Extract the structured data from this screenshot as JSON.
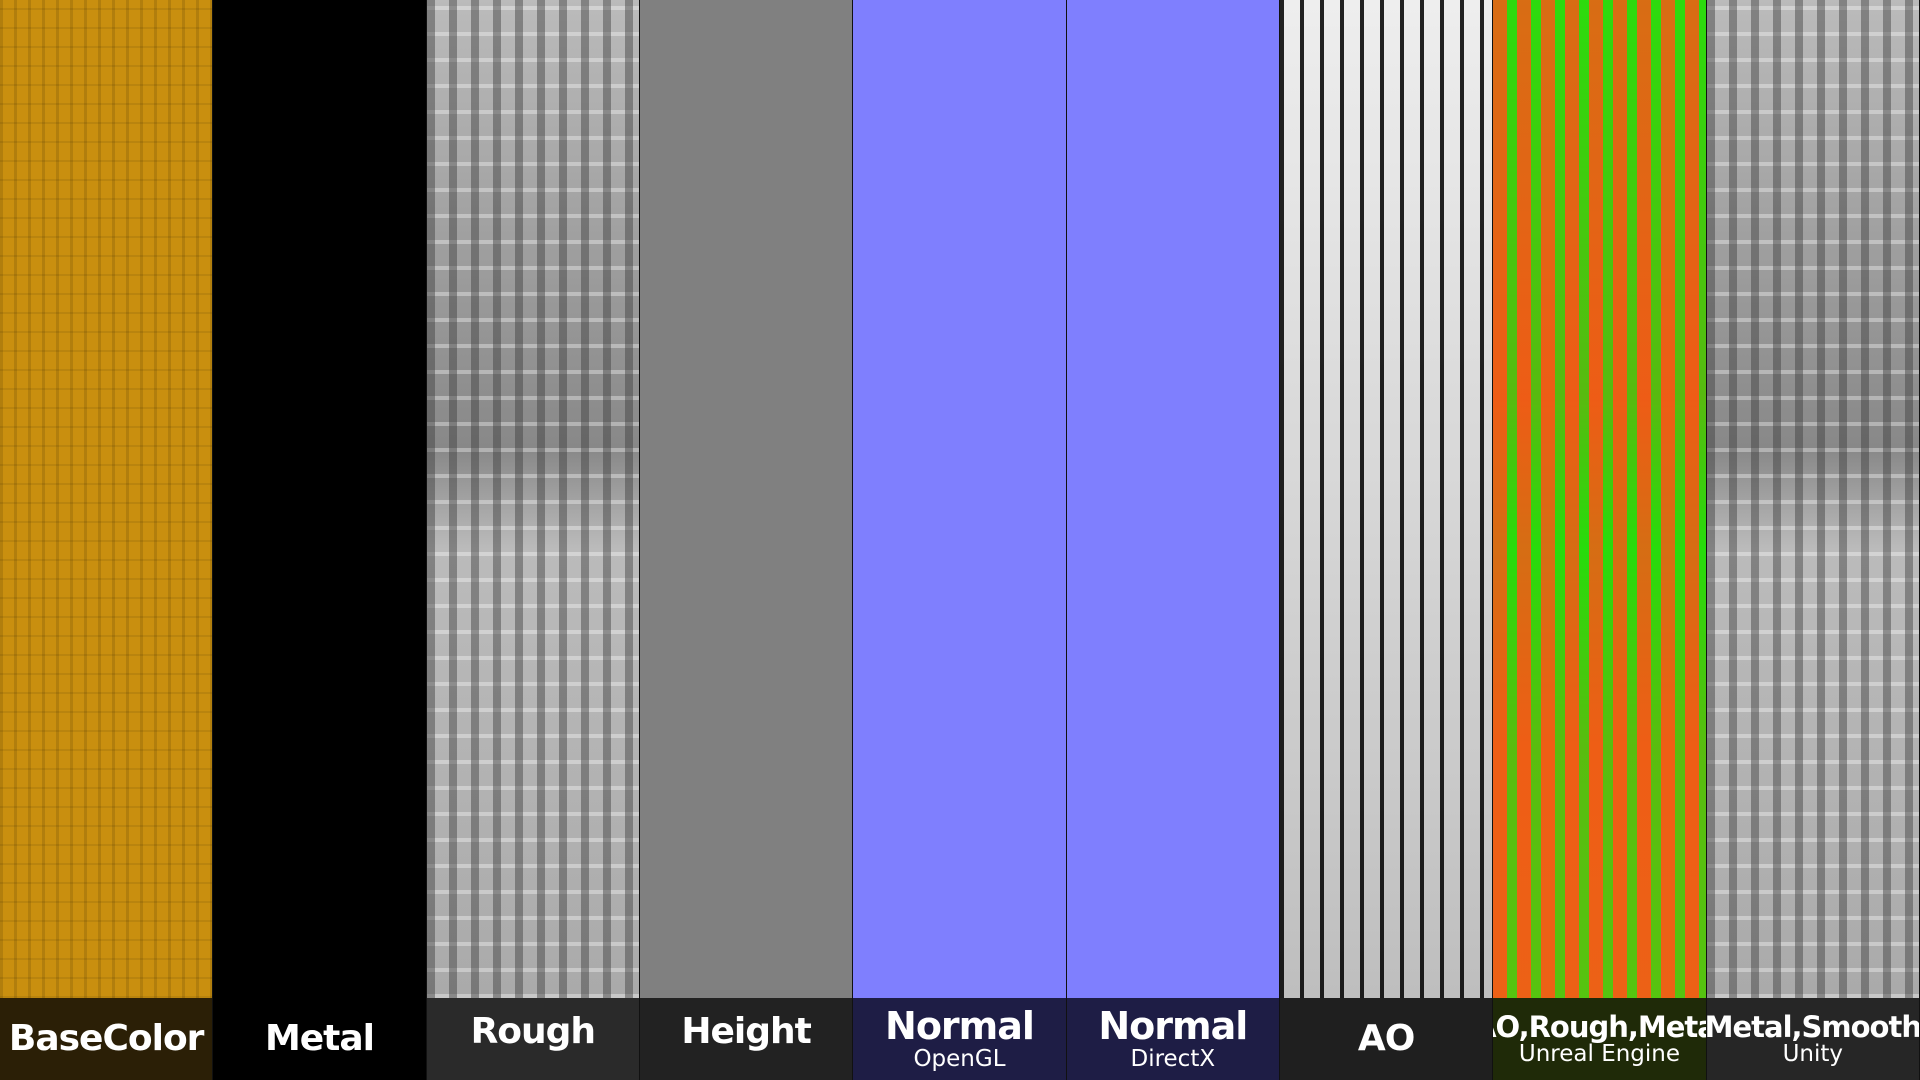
{
  "maps": [
    {
      "name": "BaseColor",
      "sub": "",
      "color": "#c98f0f",
      "label_bg": "#2b1f06"
    },
    {
      "name": "Metal",
      "sub": "",
      "color": "#000000",
      "label_bg": "#000000"
    },
    {
      "name": "Rough",
      "sub": "",
      "color": "#a0a0a0",
      "label_bg": "#2a2a2a"
    },
    {
      "name": "Height",
      "sub": "",
      "color": "#808080",
      "label_bg": "#222222"
    },
    {
      "name": "Normal",
      "sub": "OpenGL",
      "color": "#7f7ffe",
      "label_bg": "#1e1d45"
    },
    {
      "name": "Normal",
      "sub": "DirectX",
      "color": "#7f7ffe",
      "label_bg": "#1e1d45"
    },
    {
      "name": "AO",
      "sub": "",
      "color": "#d0d0d0",
      "label_bg": "#1f1f1f"
    },
    {
      "name": "AO,Rough,Metal",
      "sub": "Unreal Engine",
      "color": "#5fd81a",
      "label_bg": "#1f2a08"
    },
    {
      "name": "Metal,Smooth",
      "sub": "Unity",
      "color": "#a0a0a0",
      "label_bg": "#262626"
    }
  ]
}
